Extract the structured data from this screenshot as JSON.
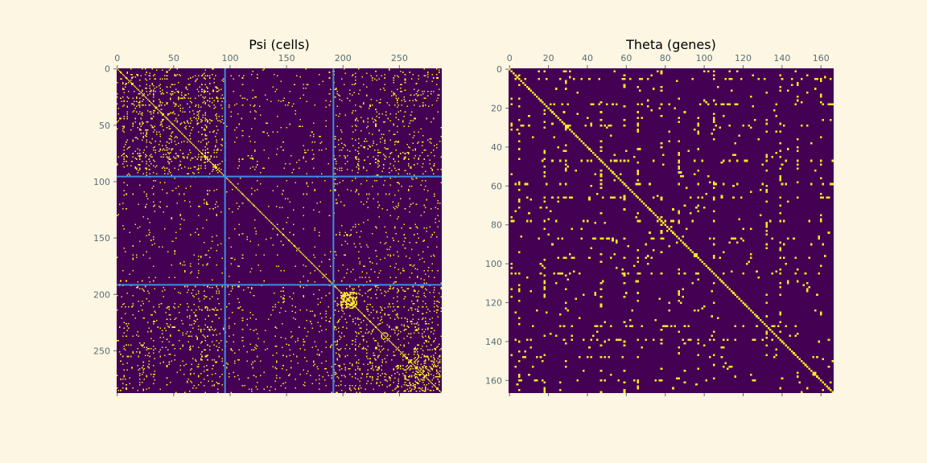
{
  "figure": {
    "background": "#fdf6e3"
  },
  "chart_data": [
    {
      "type": "heatmap",
      "title": "Psi (cells)",
      "n": 288,
      "ticks": [
        0,
        50,
        100,
        150,
        200,
        250
      ],
      "tick_position": "top-left",
      "colormap": {
        "zero": "#440154",
        "one": "#fde725"
      },
      "block_boundaries": [
        96,
        192
      ],
      "block_line_color": "#3a8ee6",
      "diagonal": true,
      "value_type": "binary adjacency matrix (0/1), symmetric",
      "structure": "three diagonal blocks of 96 cells; dense off-diagonal pattern concentrated in the first and third block groups, sparse middle block, dense sub-cluster near rows/cols 200-212 and 258-285"
    },
    {
      "type": "heatmap",
      "title": "Theta (genes)",
      "n": 167,
      "ticks": [
        0,
        20,
        40,
        60,
        80,
        100,
        120,
        140,
        160
      ],
      "tick_position": "top-left",
      "colormap": {
        "zero": "#440154",
        "one": "#fde725"
      },
      "block_boundaries": [],
      "diagonal": true,
      "value_type": "binary adjacency matrix (0/1), symmetric",
      "structure": "sparse; hub genes near indices 1, 5, 18, 29, 47, 59, 66, 78, 87, 97, 105, 132, 139, 148, 160 with horizontal and vertical line patterns"
    }
  ]
}
